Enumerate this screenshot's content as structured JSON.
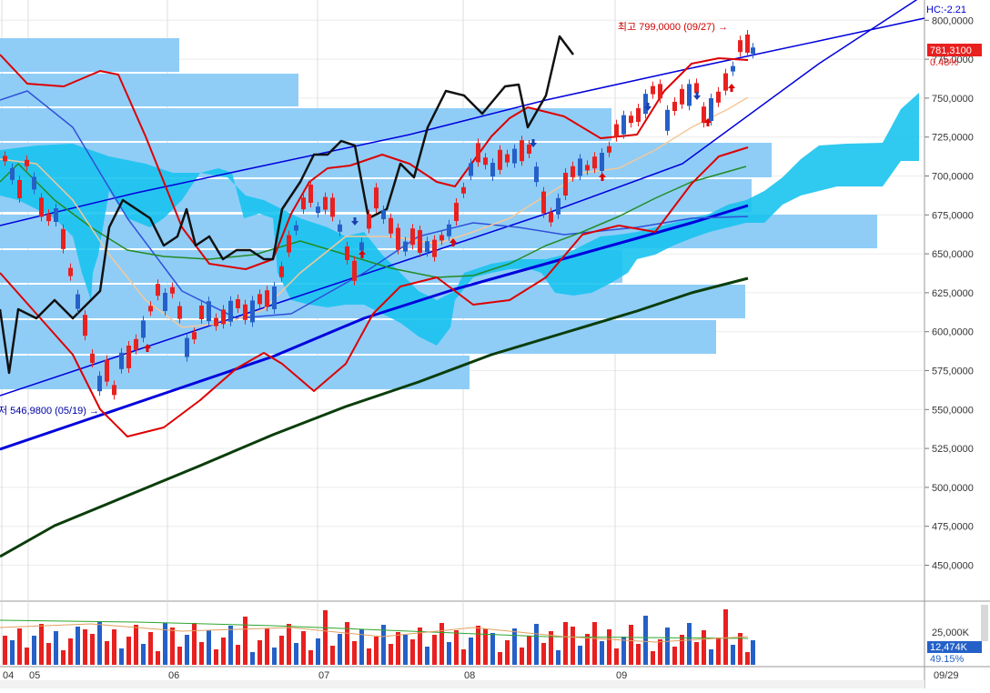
{
  "header": {
    "top_indicator": "HC:-2.21"
  },
  "price_box": {
    "last_price": "781,3100",
    "change_pct": "0.48%"
  },
  "annotations": {
    "high_label": "최고 799,0000 (09/27) →",
    "low_label": "저 546,9800 (05/19) →"
  },
  "volume_panel": {
    "axis_label": "25,000K",
    "current_volume": "12,474K",
    "ratio": "49.15%"
  },
  "x_axis": {
    "date_label": "09/29"
  },
  "colors": {
    "up_candle": "#e8201f",
    "down_candle": "#2560c8",
    "cloud": "#19c3ee",
    "volume_profile": "#8fcdf7",
    "trendline": "#0000dd",
    "bollinger": "#dd0000",
    "long_ma": "#0b3d0b",
    "price_box_bg": "#e8201f",
    "volume_box_bg": "#2560c8"
  },
  "chart_data": {
    "type": "candlestick",
    "y_axis": {
      "ticks": [
        450000,
        475000,
        500000,
        525000,
        550000,
        575000,
        600000,
        625000,
        650000,
        675000,
        700000,
        725000,
        750000,
        775000,
        800000
      ],
      "tick_labels": [
        "450,0000",
        "475,0000",
        "500,0000",
        "525,0000",
        "550,0000",
        "575,0000",
        "600,0000",
        "625,0000",
        "650,0000",
        "675,0000",
        "700,0000",
        "725,0000",
        "750,0000",
        "775,0000",
        "800,0000"
      ],
      "range": [
        433000,
        812000
      ]
    },
    "x_axis": {
      "month_labels": [
        "04",
        "05",
        "06",
        "07",
        "08",
        "09"
      ]
    },
    "high": {
      "value": 799000,
      "date": "09/27"
    },
    "low": {
      "value": 546980,
      "date": "05/19"
    },
    "last": {
      "value": 781310,
      "change_pct": 0.48
    },
    "volume_axis": {
      "ticks": [
        25000
      ],
      "tick_labels": [
        "25,000K"
      ]
    },
    "volume_last": 12474
  }
}
